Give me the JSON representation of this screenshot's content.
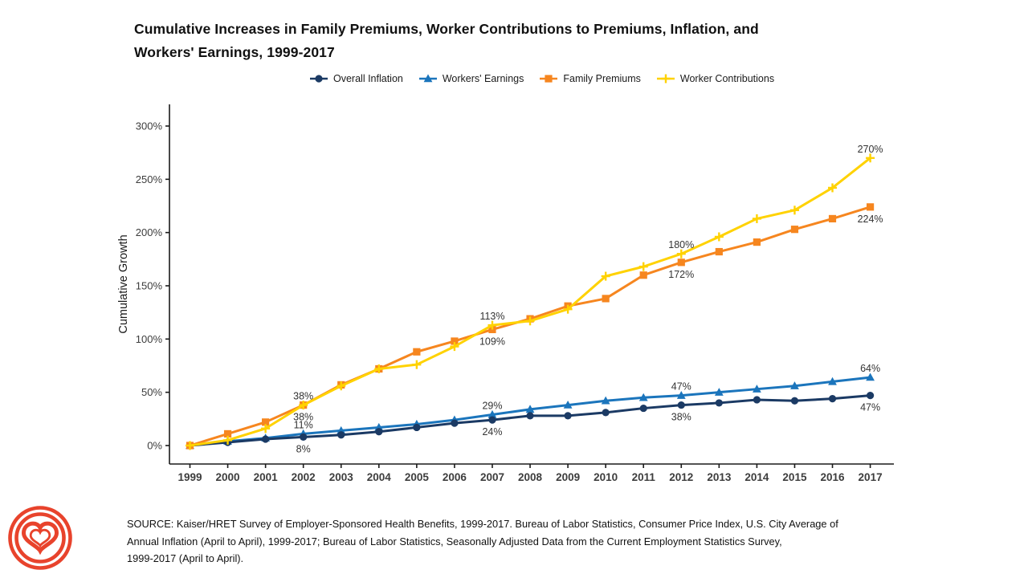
{
  "title": "Cumulative Increases in Family Premiums, Worker Contributions to Premiums, Inflation, and\nWorkers' Earnings, 1999-2017",
  "source": "SOURCE: Kaiser/HRET Survey of Employer-Sponsored Health Benefits, 1999-2017. Bureau of Labor Statistics, Consumer Price Index, U.S. City Average of\nAnnual Inflation (April to April), 1999-2017; Bureau of Labor Statistics, Seasonally Adjusted Data from the Current Employment Statistics Survey,\n1999-2017 (April to April).",
  "logo": {
    "name": "kff-heart-logo",
    "color": "#E8432C"
  },
  "chart_data": {
    "type": "line",
    "x": [
      1999,
      2000,
      2001,
      2002,
      2003,
      2004,
      2005,
      2006,
      2007,
      2008,
      2009,
      2010,
      2011,
      2012,
      2013,
      2014,
      2015,
      2016,
      2017
    ],
    "xlabel": "",
    "ylabel": "Cumulative Growth",
    "ylim": [
      0,
      300
    ],
    "y_ticks": [
      "0%",
      "50%",
      "100%",
      "150%",
      "200%",
      "250%",
      "300%"
    ],
    "y_tick_values": [
      0,
      50,
      100,
      150,
      200,
      250,
      300
    ],
    "grid": false,
    "legend_position": "top",
    "series": [
      {
        "name": "Overall Inflation",
        "color": "#1B3A64",
        "marker": "circle",
        "values": [
          0,
          3,
          6,
          8,
          10,
          13,
          17,
          21,
          24,
          28,
          28,
          31,
          35,
          38,
          40,
          43,
          42,
          44,
          47
        ]
      },
      {
        "name": "Workers' Earnings",
        "color": "#1B75BC",
        "marker": "triangle",
        "values": [
          0,
          4,
          7,
          11,
          14,
          17,
          20,
          24,
          29,
          34,
          38,
          42,
          45,
          47,
          50,
          53,
          56,
          60,
          64
        ]
      },
      {
        "name": "Family Premiums",
        "color": "#F6861F",
        "marker": "square",
        "values": [
          0,
          11,
          22,
          38,
          57,
          72,
          88,
          98,
          109,
          119,
          131,
          138,
          160,
          172,
          182,
          191,
          203,
          213,
          224
        ]
      },
      {
        "name": "Worker Contributions",
        "color": "#FFD200",
        "marker": "plus",
        "values": [
          0,
          5,
          16,
          38,
          56,
          72,
          76,
          93,
          113,
          117,
          128,
          159,
          168,
          180,
          196,
          213,
          221,
          242,
          270
        ]
      }
    ],
    "annotations": [
      {
        "year": 2002,
        "series": "Family Premiums",
        "value": 38,
        "text": "38%",
        "pos": "above"
      },
      {
        "year": 2002,
        "series": "Worker Contributions",
        "value": 38,
        "text": "38%",
        "pos": "below"
      },
      {
        "year": 2002,
        "series": "Workers' Earnings",
        "value": 11,
        "text": "11%",
        "pos": "above"
      },
      {
        "year": 2002,
        "series": "Overall Inflation",
        "value": 8,
        "text": "8%",
        "pos": "below"
      },
      {
        "year": 2007,
        "series": "Worker Contributions",
        "value": 113,
        "text": "113%",
        "pos": "above"
      },
      {
        "year": 2007,
        "series": "Family Premiums",
        "value": 109,
        "text": "109%",
        "pos": "below"
      },
      {
        "year": 2007,
        "series": "Workers' Earnings",
        "value": 29,
        "text": "29%",
        "pos": "above"
      },
      {
        "year": 2007,
        "series": "Overall Inflation",
        "value": 24,
        "text": "24%",
        "pos": "below"
      },
      {
        "year": 2012,
        "series": "Worker Contributions",
        "value": 180,
        "text": "180%",
        "pos": "above"
      },
      {
        "year": 2012,
        "series": "Family Premiums",
        "value": 172,
        "text": "172%",
        "pos": "below"
      },
      {
        "year": 2012,
        "series": "Workers' Earnings",
        "value": 47,
        "text": "47%",
        "pos": "above"
      },
      {
        "year": 2012,
        "series": "Overall Inflation",
        "value": 38,
        "text": "38%",
        "pos": "below"
      },
      {
        "year": 2017,
        "series": "Worker Contributions",
        "value": 270,
        "text": "270%",
        "pos": "above"
      },
      {
        "year": 2017,
        "series": "Family Premiums",
        "value": 224,
        "text": "224%",
        "pos": "below"
      },
      {
        "year": 2017,
        "series": "Workers' Earnings",
        "value": 64,
        "text": "64%",
        "pos": "above"
      },
      {
        "year": 2017,
        "series": "Overall Inflation",
        "value": 47,
        "text": "47%",
        "pos": "below"
      }
    ]
  }
}
